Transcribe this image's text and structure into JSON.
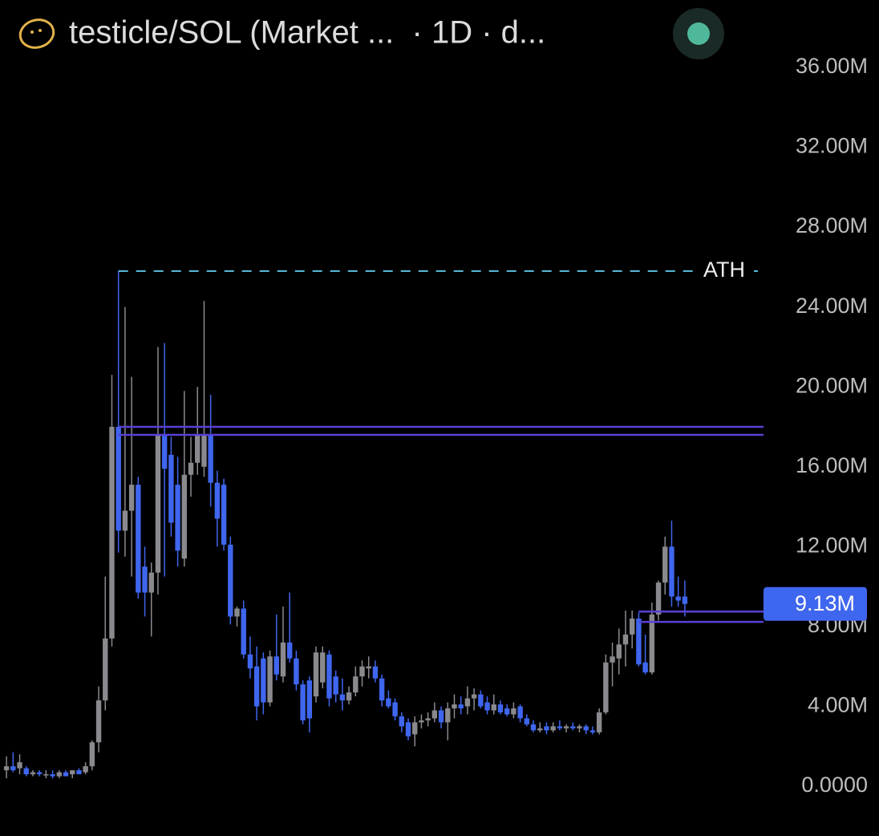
{
  "chart_data": {
    "type": "candlestick",
    "title": "testicle/SOL (Market ...  · 1D · d...",
    "open": [
      0.8,
      1.0,
      0.9,
      0.9,
      0.6,
      0.7,
      0.6,
      0.6,
      0.5,
      0.7,
      0.6,
      0.8,
      0.7,
      1.0,
      2.2,
      4.3,
      7.4,
      18.0,
      12.8,
      13.8,
      15.1,
      11.0,
      9.7,
      10.7,
      17.6,
      16.6,
      15.1,
      11.4,
      15.6,
      16.2,
      16.0,
      17.6,
      15.2,
      15.1,
      12.1,
      8.5,
      8.9,
      6.6,
      6.0,
      6.4,
      4.2,
      6.5,
      5.5,
      7.2,
      6.4,
      5.1,
      5.3,
      4.5,
      5.2,
      6.6,
      5.5,
      4.6,
      4.3,
      4.7,
      5.5,
      5.9,
      6.0,
      5.4,
      4.4,
      4.2,
      3.5,
      3.2,
      2.6,
      3.2,
      3.3,
      3.4,
      3.8,
      3.2,
      3.9,
      4.1,
      4.0,
      4.4,
      4.6,
      4.2,
      3.8,
      4.1,
      3.9,
      3.6,
      4.0,
      3.4,
      3.1,
      2.8,
      3.0,
      2.8,
      3.0,
      2.9,
      3.0,
      2.9,
      3.0,
      2.8,
      2.7,
      3.7,
      6.2,
      6.4,
      7.1,
      7.6,
      8.4,
      6.2,
      5.7,
      8.6,
      10.2,
      12.0,
      9.5,
      9.5
    ],
    "high": [
      1.5,
      1.7,
      1.6,
      1.0,
      0.8,
      0.8,
      0.8,
      0.8,
      0.8,
      0.8,
      0.8,
      0.9,
      1.2,
      2.3,
      5.0,
      10.5,
      20.6,
      25.8,
      24.0,
      20.5,
      15.5,
      12.0,
      11.2,
      22.0,
      22.2,
      17.5,
      16.5,
      19.8,
      17.5,
      20.0,
      24.3,
      19.6,
      15.8,
      15.4,
      12.5,
      9.0,
      9.3,
      7.5,
      7.0,
      6.7,
      6.8,
      8.6,
      9.0,
      9.7,
      6.8,
      5.3,
      5.5,
      7.0,
      7.0,
      6.8,
      5.8,
      5.4,
      5.0,
      6.0,
      6.3,
      6.5,
      6.3,
      5.6,
      4.8,
      4.4,
      3.7,
      3.4,
      3.5,
      3.6,
      3.7,
      4.2,
      4.0,
      4.2,
      4.6,
      4.5,
      5.0,
      4.9,
      4.8,
      4.5,
      4.6,
      4.3,
      4.1,
      4.2,
      4.1,
      3.6,
      3.3,
      3.2,
      3.2,
      3.2,
      3.3,
      3.1,
      3.2,
      3.1,
      3.1,
      3.0,
      3.9,
      6.6,
      7.2,
      7.9,
      8.8,
      8.8,
      8.7,
      7.6,
      9.2,
      10.3,
      12.5,
      13.3,
      10.5,
      10.3
    ],
    "low": [
      0.4,
      0.7,
      0.6,
      0.5,
      0.5,
      0.5,
      0.4,
      0.4,
      0.4,
      0.5,
      0.4,
      0.6,
      0.6,
      0.8,
      1.7,
      3.8,
      7.0,
      11.7,
      11.5,
      10.5,
      9.4,
      8.5,
      7.5,
      9.6,
      10.5,
      12.5,
      11.0,
      11.0,
      14.5,
      15.6,
      15.5,
      14.0,
      12.0,
      11.8,
      8.1,
      8.0,
      6.4,
      5.4,
      3.3,
      3.6,
      4.0,
      5.3,
      5.2,
      6.2,
      4.8,
      3.1,
      2.7,
      4.2,
      4.9,
      4.0,
      4.2,
      3.8,
      4.1,
      4.5,
      5.0,
      5.4,
      5.2,
      4.0,
      3.9,
      3.3,
      2.7,
      2.3,
      2.0,
      2.9,
      3.0,
      3.2,
      2.9,
      2.3,
      3.4,
      3.6,
      3.6,
      3.8,
      3.9,
      3.6,
      3.6,
      3.6,
      3.5,
      3.4,
      3.2,
      3.0,
      2.7,
      2.7,
      2.6,
      2.7,
      2.8,
      2.7,
      2.8,
      2.7,
      2.6,
      2.6,
      2.6,
      3.6,
      5.0,
      5.6,
      6.0,
      6.9,
      6.0,
      5.6,
      5.6,
      8.3,
      9.6,
      9.0,
      9.0,
      8.5
    ],
    "close": [
      1.0,
      0.8,
      1.2,
      0.6,
      0.7,
      0.6,
      0.6,
      0.5,
      0.7,
      0.5,
      0.8,
      0.6,
      1.0,
      2.2,
      4.3,
      7.4,
      18.0,
      12.8,
      13.8,
      15.1,
      9.7,
      9.7,
      10.7,
      17.6,
      15.9,
      13.2,
      11.8,
      15.6,
      16.2,
      17.6,
      17.6,
      15.2,
      13.4,
      12.1,
      8.5,
      8.9,
      6.6,
      5.9,
      4.0,
      4.2,
      6.5,
      5.6,
      7.2,
      6.4,
      5.1,
      3.3,
      3.4,
      6.7,
      6.7,
      4.4,
      4.6,
      4.3,
      4.7,
      5.5,
      6.0,
      6.0,
      5.4,
      4.3,
      4.0,
      3.5,
      3.0,
      2.5,
      3.2,
      3.3,
      3.4,
      3.8,
      3.2,
      3.9,
      4.1,
      3.9,
      4.4,
      4.6,
      4.0,
      3.8,
      4.1,
      3.7,
      3.6,
      3.9,
      3.4,
      3.1,
      2.8,
      2.9,
      2.8,
      3.0,
      2.9,
      3.0,
      2.9,
      3.0,
      2.8,
      2.7,
      3.7,
      6.2,
      6.5,
      7.1,
      7.6,
      8.4,
      6.1,
      5.7,
      8.6,
      10.2,
      12.0,
      9.5,
      9.3,
      9.13
    ],
    "up_color": "#8a8a8e",
    "down_color": "#3f66ee",
    "ylim": [
      0,
      36
    ],
    "yticks": [
      {
        "value": 0,
        "label": "0.0000"
      },
      {
        "value": 4,
        "label": "4.00M"
      },
      {
        "value": 8,
        "label": "8.00M"
      },
      {
        "value": 12,
        "label": "12.00M"
      },
      {
        "value": 16,
        "label": "16.00M"
      },
      {
        "value": 20,
        "label": "20.00M"
      },
      {
        "value": 24,
        "label": "24.00M"
      },
      {
        "value": 28,
        "label": "28.00M"
      },
      {
        "value": 32,
        "label": "32.00M"
      },
      {
        "value": 36,
        "label": "36.00M"
      }
    ],
    "ath": {
      "value": 25.8,
      "label": "ATH",
      "color": "#5bc0e0"
    },
    "levels": [
      18.0,
      17.6,
      8.75,
      8.23
    ],
    "level_color": "#5a3fd6",
    "last": {
      "value": 9.13,
      "label": "9.13M",
      "color": "#3f66ee"
    }
  }
}
